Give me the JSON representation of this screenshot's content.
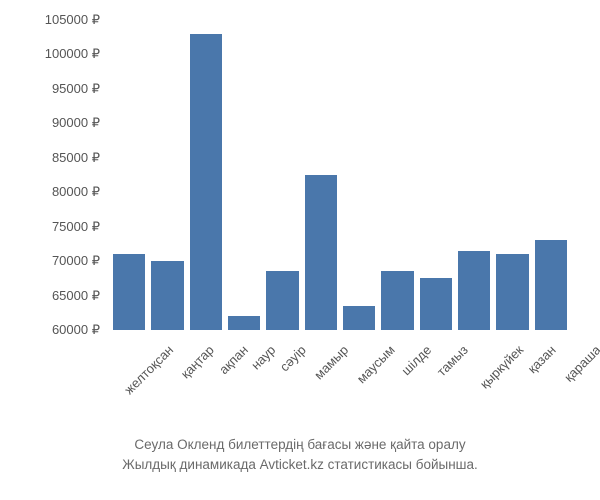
{
  "chart": {
    "type": "bar",
    "currency_suffix": " ₽",
    "ylim": [
      60000,
      105000
    ],
    "ytick_step": 5000,
    "yticks": [
      60000,
      65000,
      70000,
      75000,
      80000,
      85000,
      90000,
      95000,
      100000,
      105000
    ],
    "categories": [
      "желтоқсан",
      "қаңтар",
      "ақпан",
      "наур",
      "сәуір",
      "мамыр",
      "маусым",
      "шілде",
      "тамыз",
      "қыркүйек",
      "қазан",
      "қараша"
    ],
    "values": [
      71000,
      70000,
      103000,
      62000,
      68500,
      82500,
      63500,
      68500,
      67500,
      71500,
      71000,
      73000
    ],
    "bar_color": "#4a77ab",
    "text_color": "#555555",
    "background_color": "#ffffff",
    "label_fontsize": 13,
    "caption_fontsize": 13.5,
    "caption_color": "#6a6a6a"
  },
  "caption": {
    "line1": "Сеула Окленд билеттердің бағасы және қайта оралу",
    "line2": "Жылдық динамикада Avticket.kz статистикасы бойынша."
  }
}
